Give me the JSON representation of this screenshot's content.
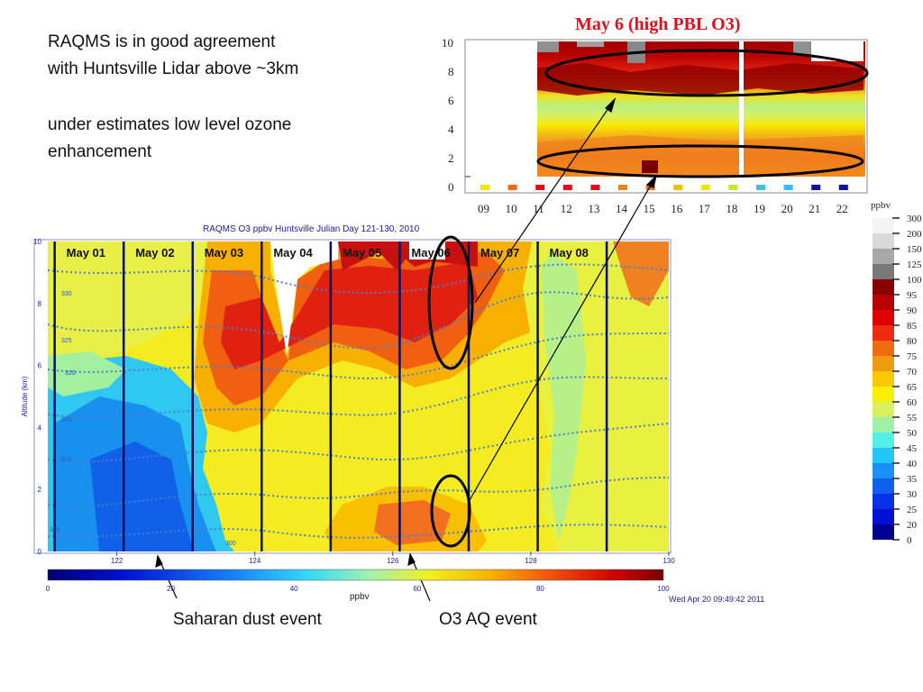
{
  "notes": {
    "agreement_line1": "RAQMS is in good agreement",
    "agreement_line2": "with Huntsville Lidar above ~3km",
    "under_line1": "under estimates low level ozone",
    "under_line2": "enhancement"
  },
  "lidar_title": "May 6 (high PBL O3)",
  "model_title": "RAQMS O3 ppbv Huntsville Julian Day 121-130, 2010",
  "timestamp": "Wed Apr 20 09:49:42 2011",
  "events": {
    "saharan": "Saharan dust event",
    "o3aq": "O3 AQ event"
  },
  "colors": {
    "title_red": "#e0101a",
    "contour_blue": "#4a7fd0",
    "annotation_black": "#000000"
  },
  "chart_data": [
    {
      "type": "heatmap",
      "title": "RAQMS O3 ppbv Huntsville Julian Day 121-130, 2010",
      "xlabel": "",
      "ylabel": "Altitude (km)",
      "xlim": [
        121,
        130
      ],
      "ylim": [
        0,
        10
      ],
      "x_ticks": [
        "122",
        "124",
        "126",
        "128",
        "130"
      ],
      "y_ticks": [
        "0",
        "2",
        "4",
        "6",
        "8",
        "10"
      ],
      "day_labels": [
        "May 01",
        "May 02",
        "May 03",
        "May 04",
        "May 05",
        "May 06",
        "May 07",
        "May 08"
      ],
      "day_boundaries": [
        121.1,
        122.1,
        123.1,
        124.1,
        125.1,
        126.1,
        127.1,
        128.1,
        129.1
      ],
      "colorbar": {
        "label": "ppbv",
        "ticks": [
          "0",
          "20",
          "40",
          "60",
          "80",
          "100"
        ],
        "range": [
          0,
          100
        ]
      },
      "contour_labels": [
        "300",
        "305",
        "310",
        "315",
        "320",
        "325",
        "330"
      ],
      "highlights": [
        {
          "label": "upper O3, May 06",
          "x_center": 126.65,
          "y_range": [
            3.5,
            9.0
          ]
        },
        {
          "label": "low-level O3, May 06",
          "x_center": 126.65,
          "y_range": [
            0.2,
            2.2
          ]
        }
      ]
    },
    {
      "type": "heatmap",
      "title": "May 6 (high PBL O3)",
      "xlabel": "",
      "ylabel": "",
      "x_ticks": [
        "09",
        "10",
        "11",
        "12",
        "13",
        "14",
        "15",
        "16",
        "17",
        "18",
        "19",
        "20",
        "21",
        "22"
      ],
      "y_ticks": [
        "0",
        "2",
        "4",
        "6",
        "8",
        "10"
      ],
      "ylim": [
        0,
        10
      ],
      "data_gap_hour": 18.2,
      "surface_marker_colors": [
        "#f5e400",
        "#f06a10",
        "#e01018",
        "#e01018",
        "#e01018",
        "#f08020",
        "#f07020",
        "#f0c000",
        "#f5e400",
        "#c8e830",
        "#40c0e8",
        "#40b8f0",
        "#1010a0",
        "#1010a0"
      ],
      "highlights": [
        {
          "label": "upper O3",
          "y_range": [
            6.5,
            9.5
          ]
        },
        {
          "label": "PBL O3",
          "y_range": [
            1.0,
            2.8
          ]
        }
      ]
    },
    {
      "type": "bar",
      "title": "",
      "unit": "ppbv",
      "ticks": [
        "300",
        "200",
        "150",
        "125",
        "100",
        "95",
        "90",
        "85",
        "80",
        "75",
        "70",
        "65",
        "60",
        "55",
        "50",
        "45",
        "40",
        "35",
        "30",
        "25",
        "20",
        "0"
      ],
      "swatches": [
        "#f4f4f4",
        "#d8d8d8",
        "#a8a8a8",
        "#787878",
        "#8a0000",
        "#b80000",
        "#e00000",
        "#f02a10",
        "#f06a10",
        "#f09a10",
        "#f8c800",
        "#f8f000",
        "#d8f060",
        "#a0f0a8",
        "#50f0e8",
        "#20c8f8",
        "#1890f8",
        "#1060f0",
        "#0830e8",
        "#0010d8",
        "#000090"
      ]
    }
  ]
}
